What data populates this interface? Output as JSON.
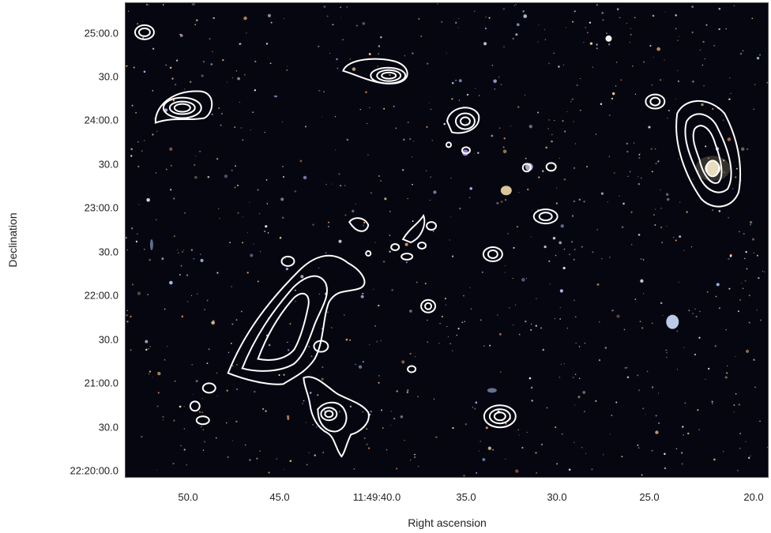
{
  "axes": {
    "xlabel": "Right ascension",
    "ylabel": "Declination",
    "xticks": [
      "50.0",
      "45.0",
      "11:49:40.0",
      "35.0",
      "30.0",
      "25.0",
      "20.0"
    ],
    "yticks": [
      "25:00.0",
      "30.0",
      "24:00.0",
      "30.0",
      "23:00.0",
      "30.0",
      "22:00.0",
      "30.0",
      "21:00.0",
      "30.0",
      "22:20:00.0"
    ]
  },
  "colors": {
    "sky_background": "#05060f",
    "contour": "#ffffff"
  }
}
